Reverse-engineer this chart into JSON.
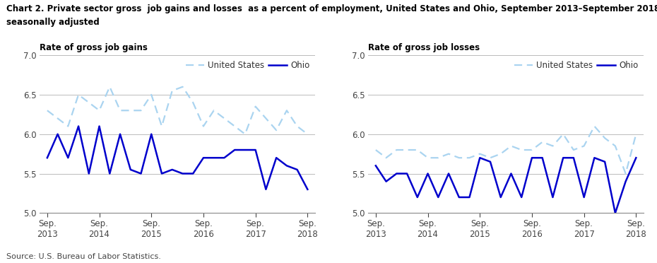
{
  "title_line1": "Chart 2. Private sector gross  job gains and losses  as a percent of employment, United States and Ohio, September 2013–September 2018,",
  "title_line2": "seasonally adjusted",
  "left_chart_title": "Rate of gross job gains",
  "right_chart_title": "Rate of gross job losses",
  "source": "Source: U.S. Bureau of Labor Statistics.",
  "x_tick_labels": [
    "Sep.\n2013",
    "Sep.\n2014",
    "Sep.\n2015",
    "Sep.\n2016",
    "Sep.\n2017",
    "Sep.\n2018"
  ],
  "ylim": [
    5.0,
    7.0
  ],
  "yticks": [
    5.0,
    5.5,
    6.0,
    6.5,
    7.0
  ],
  "us_color": "#aad4f0",
  "ohio_color": "#0000cc",
  "us_label": "United States",
  "ohio_label": "Ohio",
  "gains_us": [
    6.3,
    6.2,
    6.1,
    6.5,
    6.4,
    6.3,
    6.6,
    6.3,
    6.3,
    6.3,
    6.5,
    6.1,
    6.55,
    6.6,
    6.4,
    6.1,
    6.3,
    6.2,
    6.1,
    6.0,
    6.35,
    6.2,
    6.05,
    6.3,
    6.1,
    6.0
  ],
  "gains_ohio": [
    5.7,
    6.0,
    5.7,
    6.1,
    5.5,
    6.1,
    5.5,
    6.0,
    5.55,
    5.5,
    6.0,
    5.5,
    5.55,
    5.5,
    5.5,
    5.7,
    5.7,
    5.7,
    5.8,
    5.8,
    5.8,
    5.3,
    5.7,
    5.6,
    5.55,
    5.3
  ],
  "losses_us": [
    5.8,
    5.7,
    5.8,
    5.8,
    5.8,
    5.7,
    5.7,
    5.75,
    5.7,
    5.7,
    5.75,
    5.7,
    5.75,
    5.85,
    5.8,
    5.8,
    5.9,
    5.85,
    6.0,
    5.8,
    5.85,
    6.1,
    5.95,
    5.85,
    5.5,
    6.0
  ],
  "losses_ohio": [
    5.6,
    5.4,
    5.5,
    5.5,
    5.2,
    5.5,
    5.2,
    5.5,
    5.2,
    5.2,
    5.7,
    5.65,
    5.2,
    5.5,
    5.2,
    5.7,
    5.7,
    5.2,
    5.7,
    5.7,
    5.2,
    5.7,
    5.65,
    5.0,
    5.4,
    5.7
  ]
}
